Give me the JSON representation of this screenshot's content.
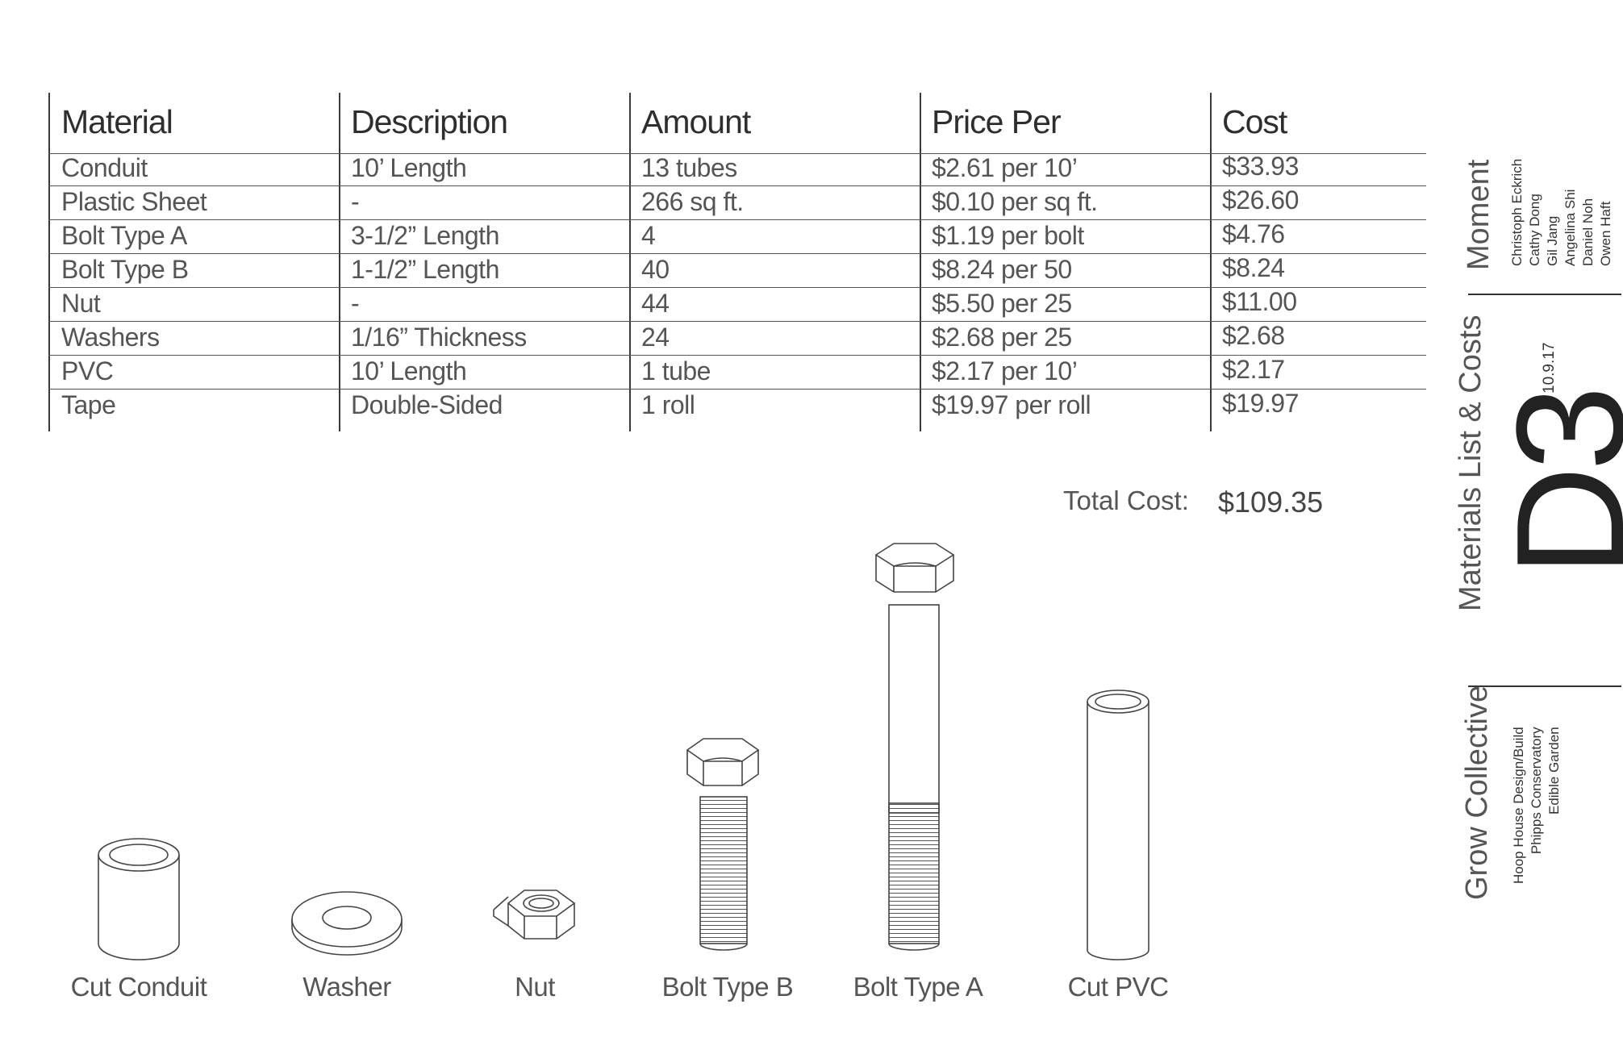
{
  "table": {
    "headers": [
      "Material",
      "Description",
      "Amount",
      "Price Per",
      "Cost"
    ],
    "rows": [
      [
        "Conduit",
        "10’ Length",
        "13 tubes",
        "$2.61 per 10’",
        "$33.93"
      ],
      [
        "Plastic Sheet",
        "-",
        "266 sq ft.",
        "$0.10 per sq ft.",
        "$26.60"
      ],
      [
        "Bolt Type A",
        "3-1/2” Length",
        "4",
        "$1.19 per bolt",
        "$4.76"
      ],
      [
        "Bolt Type B",
        "1-1/2” Length",
        "40",
        "$8.24 per 50",
        "$8.24"
      ],
      [
        "Nut",
        "-",
        "44",
        "$5.50 per 25",
        "$11.00"
      ],
      [
        "Washers",
        "1/16” Thickness",
        "24",
        "$2.68 per 25",
        "$2.68"
      ],
      [
        "PVC",
        "10’ Length",
        "1 tube",
        "$2.17 per 10’",
        "$2.17"
      ],
      [
        "Tape",
        "Double-Sided",
        "1 roll",
        "$19.97 per roll",
        "$19.97"
      ]
    ]
  },
  "total": {
    "label": "Total Cost:",
    "value": "$109.35"
  },
  "drawings": {
    "captions": [
      "Cut Conduit",
      "Washer",
      "Nut",
      "Bolt Type B",
      "Bolt Type A",
      "Cut PVC"
    ]
  },
  "title_block": {
    "team_name": "Moment",
    "members": [
      "Christoph Eckrich",
      "Cathy Dong",
      "Gil Jang",
      "Angelina Shi",
      "Daniel Noh",
      "Owen Haft"
    ],
    "sheet_title": "Materials List & Costs",
    "date": "10.9.17",
    "sheet_number": "D3",
    "client": "Grow Collective",
    "project_lines": [
      "Hoop House Design/Build",
      "Phipps Conservatory",
      "Edible Garden"
    ]
  }
}
